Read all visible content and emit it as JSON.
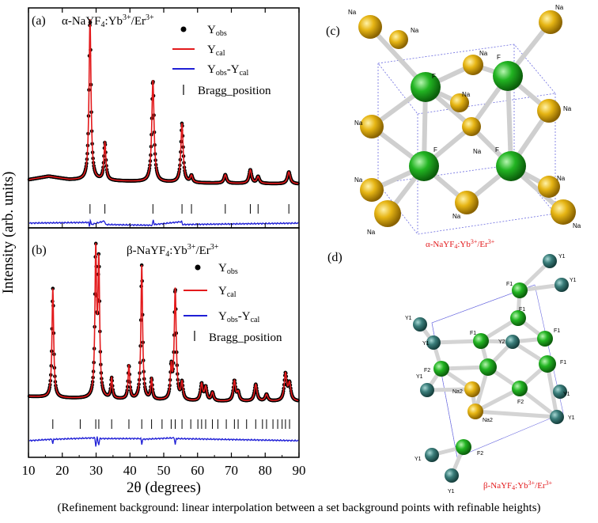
{
  "chart_data": [
    {
      "type": "line",
      "panel_label": "(a)",
      "title": "α-NaYF4:Yb3+/Er3+",
      "title_parts": {
        "base": "α-NaYF",
        "sub1": "4",
        "mid": ":Yb",
        "sup1": "3+",
        "mid2": "/Er",
        "sup2": "3+"
      },
      "xlabel": "2θ (degrees)",
      "ylabel": "Intensity (arb. units)",
      "xlim": [
        10,
        90
      ],
      "xticks": [
        10,
        20,
        30,
        40,
        50,
        60,
        70,
        80,
        90
      ],
      "legend_position": "top-right",
      "legend": [
        {
          "marker": "dot",
          "color": "#000000",
          "base": "Y",
          "sub": "obs",
          "rest": ""
        },
        {
          "marker": "line",
          "color": "#e31a1c",
          "base": "Y",
          "sub": "cal",
          "rest": ""
        },
        {
          "marker": "line",
          "color": "#1f1fd6",
          "base": "Y",
          "sub": "obs",
          "rest": "-Y",
          "sub2": "cal"
        },
        {
          "marker": "tick",
          "color": "#000000",
          "base": "Bragg_position",
          "sub": "",
          "rest": ""
        }
      ],
      "background": [
        [
          10,
          0.06
        ],
        [
          16,
          0.08
        ],
        [
          22,
          0.06
        ],
        [
          40,
          0.05
        ],
        [
          60,
          0.04
        ],
        [
          90,
          0.035
        ]
      ],
      "peaks": [
        {
          "x": 28.2,
          "h": 0.95,
          "w": 0.35
        },
        {
          "x": 32.6,
          "h": 0.22,
          "w": 0.35
        },
        {
          "x": 46.8,
          "h": 0.6,
          "w": 0.4
        },
        {
          "x": 55.4,
          "h": 0.35,
          "w": 0.4
        },
        {
          "x": 58.2,
          "h": 0.04,
          "w": 0.4
        },
        {
          "x": 68.2,
          "h": 0.05,
          "w": 0.45
        },
        {
          "x": 75.6,
          "h": 0.08,
          "w": 0.45
        },
        {
          "x": 77.9,
          "h": 0.04,
          "w": 0.45
        },
        {
          "x": 87.0,
          "h": 0.07,
          "w": 0.5
        }
      ],
      "bragg_positions": [
        28.2,
        32.6,
        46.8,
        55.4,
        58.2,
        68.2,
        75.6,
        77.9,
        87.0
      ],
      "difference": [
        [
          10,
          0
        ],
        [
          27.8,
          0.01
        ],
        [
          28.0,
          -0.05
        ],
        [
          28.3,
          0.04
        ],
        [
          28.6,
          -0.02
        ],
        [
          32.5,
          0.03
        ],
        [
          32.8,
          -0.02
        ],
        [
          46.6,
          -0.03
        ],
        [
          46.9,
          0.05
        ],
        [
          47.2,
          -0.02
        ],
        [
          55.3,
          0.02
        ],
        [
          55.6,
          -0.02
        ],
        [
          90,
          0
        ]
      ]
    },
    {
      "type": "line",
      "panel_label": "(b)",
      "title": "β-NaYF4:Yb3+/Er3+",
      "title_parts": {
        "base": "β-NaYF",
        "sub1": "4",
        "mid": ":Yb",
        "sup1": "3+",
        "mid2": "/Er",
        "sup2": "3+"
      },
      "xlabel": "2θ (degrees)",
      "ylabel": "Intensity (arb. units)",
      "xlim": [
        10,
        90
      ],
      "xticks": [
        10,
        20,
        30,
        40,
        50,
        60,
        70,
        80,
        90
      ],
      "legend_position": "top-right",
      "legend": [
        {
          "marker": "dot",
          "color": "#000000",
          "base": "Y",
          "sub": "obs",
          "rest": ""
        },
        {
          "marker": "line",
          "color": "#e31a1c",
          "base": "Y",
          "sub": "cal",
          "rest": ""
        },
        {
          "marker": "line",
          "color": "#1f1fd6",
          "base": "Y",
          "sub": "obs",
          "rest": "-Y",
          "sub2": "cal"
        },
        {
          "marker": "tick",
          "color": "#000000",
          "base": "Bragg_position",
          "sub": "",
          "rest": ""
        }
      ],
      "background": [
        [
          10,
          0.08
        ],
        [
          20,
          0.07
        ],
        [
          40,
          0.06
        ],
        [
          60,
          0.05
        ],
        [
          90,
          0.05
        ]
      ],
      "peaks": [
        {
          "x": 17.2,
          "h": 0.65,
          "w": 0.3
        },
        {
          "x": 29.9,
          "h": 0.85,
          "w": 0.3
        },
        {
          "x": 30.8,
          "h": 0.78,
          "w": 0.3
        },
        {
          "x": 34.6,
          "h": 0.12,
          "w": 0.3
        },
        {
          "x": 39.7,
          "h": 0.2,
          "w": 0.3
        },
        {
          "x": 43.5,
          "h": 0.8,
          "w": 0.3
        },
        {
          "x": 46.4,
          "h": 0.12,
          "w": 0.3
        },
        {
          "x": 52.2,
          "h": 0.18,
          "w": 0.3
        },
        {
          "x": 53.4,
          "h": 0.66,
          "w": 0.35
        },
        {
          "x": 55.4,
          "h": 0.1,
          "w": 0.35
        },
        {
          "x": 61.2,
          "h": 0.1,
          "w": 0.4
        },
        {
          "x": 62.4,
          "h": 0.08,
          "w": 0.4
        },
        {
          "x": 64.4,
          "h": 0.05,
          "w": 0.4
        },
        {
          "x": 70.9,
          "h": 0.12,
          "w": 0.4
        },
        {
          "x": 72.0,
          "h": 0.05,
          "w": 0.4
        },
        {
          "x": 77.2,
          "h": 0.1,
          "w": 0.45
        },
        {
          "x": 80.4,
          "h": 0.04,
          "w": 0.45
        },
        {
          "x": 86.0,
          "h": 0.16,
          "w": 0.45
        },
        {
          "x": 87.2,
          "h": 0.1,
          "w": 0.45
        }
      ],
      "bragg_positions": [
        17.2,
        25.3,
        29.9,
        30.8,
        34.6,
        39.7,
        43.5,
        46.4,
        49.5,
        52.2,
        53.4,
        55.4,
        58.0,
        60.1,
        61.2,
        62.4,
        64.4,
        66.0,
        68.5,
        70.9,
        72.0,
        74.5,
        77.2,
        79.2,
        80.4,
        82.3,
        83.7,
        85.0,
        86.0,
        87.2
      ],
      "difference": [
        [
          10,
          0
        ],
        [
          16.9,
          0.02
        ],
        [
          17.2,
          -0.04
        ],
        [
          17.5,
          0.02
        ],
        [
          29.6,
          0.04
        ],
        [
          29.9,
          -0.08
        ],
        [
          30.3,
          0.05
        ],
        [
          30.8,
          -0.06
        ],
        [
          31.1,
          0.03
        ],
        [
          43.2,
          0.03
        ],
        [
          43.5,
          -0.05
        ],
        [
          43.8,
          0.02
        ],
        [
          53.1,
          0.04
        ],
        [
          53.4,
          -0.06
        ],
        [
          53.7,
          0.03
        ],
        [
          90,
          0
        ]
      ]
    }
  ],
  "structures": {
    "alpha": {
      "panel_label": "(c)",
      "label_parts": {
        "base": "α-NaYF",
        "sub1": "4",
        "mid": ":Yb",
        "sup1": "3+",
        "mid2": "/Er",
        "sup2": "3+"
      },
      "atom_label_na": "Na",
      "atom_label_f": "F"
    },
    "beta": {
      "panel_label": "(d)",
      "label_parts": {
        "base": "β-NaYF",
        "sub1": "4",
        "mid": ":Yb",
        "sup1": "3+",
        "mid2": "/Er",
        "sup2": "3+"
      },
      "atom_labels": {
        "y1": "Y1",
        "y2": "Y2",
        "f1": "F1",
        "f2": "F2",
        "na2": "Na2"
      }
    }
  },
  "caption": "(Refinement background: linear interpolation between a set background points with refinable heights)",
  "colors": {
    "observed": "#000000",
    "calculated": "#e31a1c",
    "difference": "#1f1fd6",
    "sodium": "#e0b012",
    "fluorine": "#1db31d",
    "yttrium": "#3a7d7a",
    "structure_label": "#e31a1c"
  }
}
